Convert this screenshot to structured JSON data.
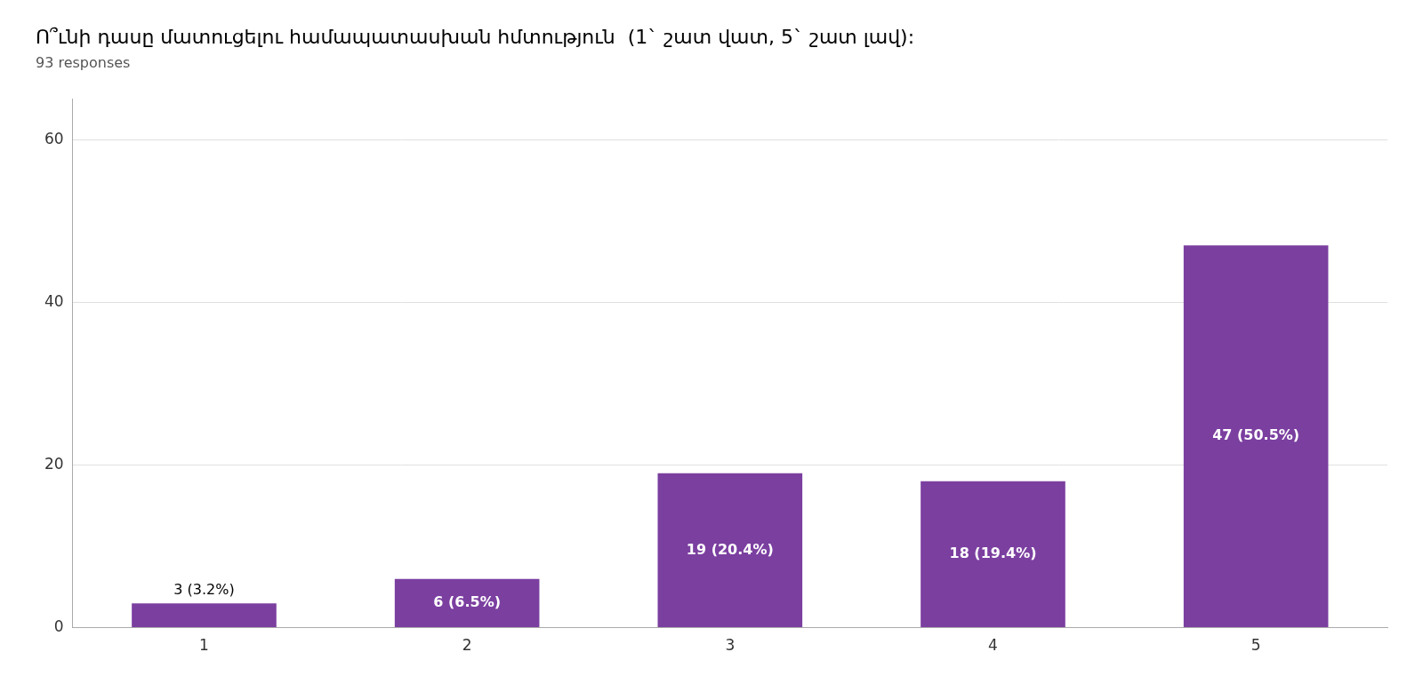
{
  "chart_data": {
    "type": "bar",
    "title": "Ո՞ւնի դասը մատուցելու համապատասխան հմտություն  (1` շատ վատ, 5` շատ լավ):",
    "subtitle": "93 responses",
    "categories": [
      "1",
      "2",
      "3",
      "4",
      "5"
    ],
    "values": [
      3,
      6,
      19,
      18,
      47
    ],
    "value_labels": [
      "3 (3.2%)",
      "6 (6.5%)",
      "19 (20.4%)",
      "18 (19.4%)",
      "47 (50.5%)"
    ],
    "color": "#7B3FA0",
    "ylim": [
      0,
      65
    ],
    "yticks": [
      0,
      20,
      40,
      60
    ],
    "grid": true,
    "data_labels": true
  }
}
